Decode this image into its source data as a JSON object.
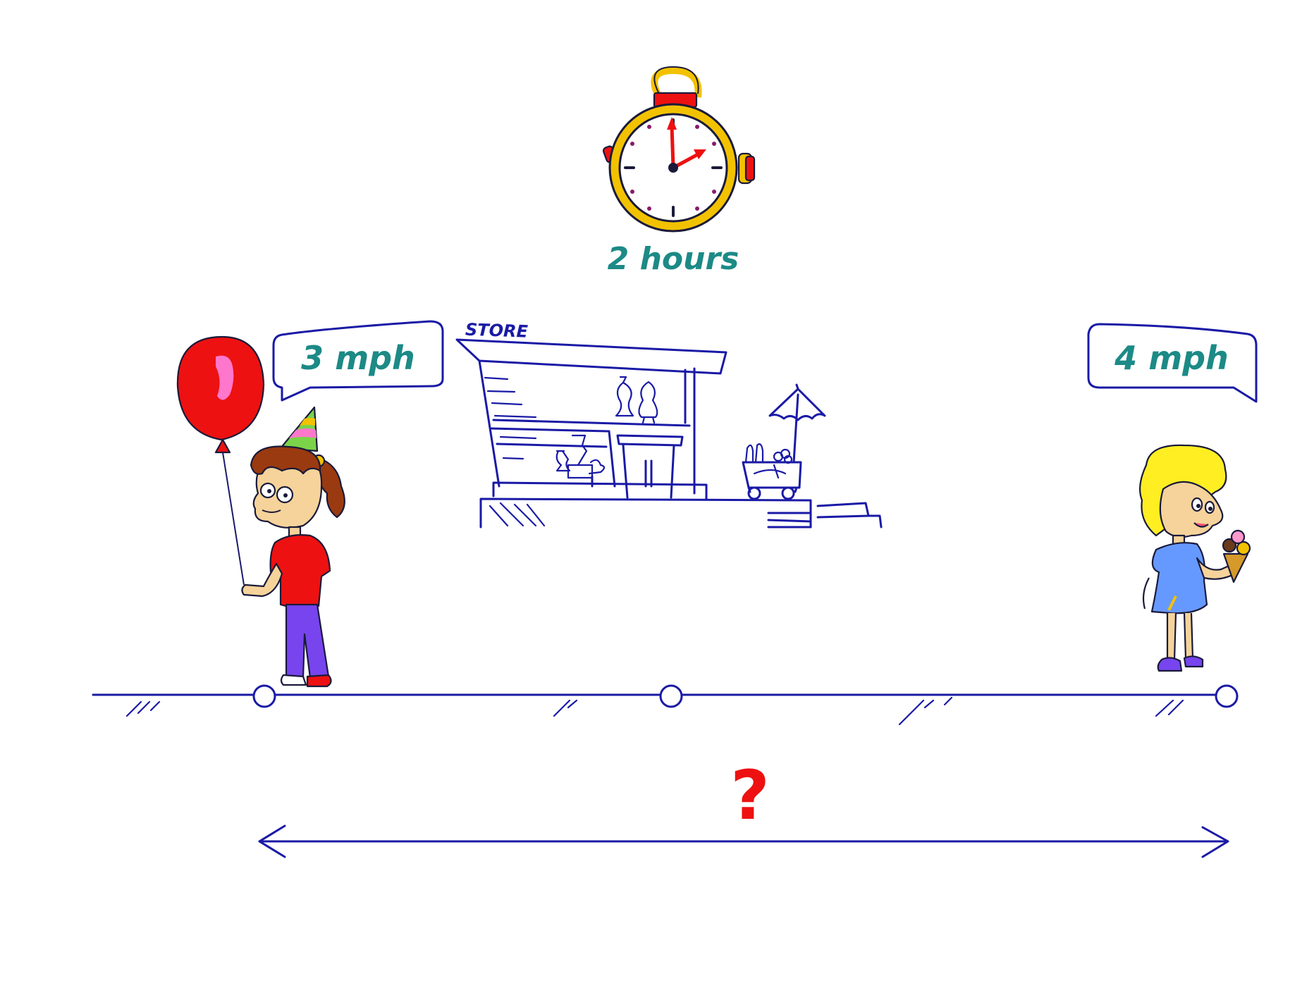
{
  "timer": {
    "label": "2 hours"
  },
  "store": {
    "sign": "STORE"
  },
  "left_child": {
    "speed_label": "3 mph"
  },
  "right_child": {
    "speed_label": "4 mph"
  },
  "distance": {
    "label": "?"
  },
  "colors": {
    "label_text": "#1c8a86",
    "line_art": "#1a1aa6",
    "question_mark": "#ee1111",
    "balloon": "#ee1111",
    "timer_case": "#f2c200"
  }
}
